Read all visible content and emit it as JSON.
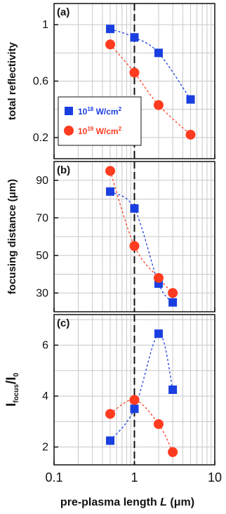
{
  "colors": {
    "series_a": "#1a3fe0",
    "series_b": "#ff3b1f",
    "grid": "#c8c8c8",
    "axis": "#111111"
  },
  "chart_data": [
    {
      "type": "scatter",
      "panel_label": "(a)",
      "ylabel": "total reflectivity",
      "xscale": "log",
      "xlim": [
        0.1,
        10
      ],
      "ylim": [
        0.05,
        1.15
      ],
      "yticks": [
        0.2,
        0.6,
        1
      ],
      "ytick_labels": [
        "0.2",
        "0.6",
        "1"
      ],
      "grid": true,
      "vline_x": 1,
      "legend_position": "lower-left",
      "series": [
        {
          "legend_base": "10",
          "legend_exp": "18",
          "legend_unit": " W/cm",
          "legend_unit_exp": "2",
          "marker": "square",
          "x": [
            0.5,
            1.0,
            2.0,
            5.0
          ],
          "y": [
            0.97,
            0.91,
            0.8,
            0.47
          ]
        },
        {
          "legend_base": "10",
          "legend_exp": "19",
          "legend_unit": " W/cm",
          "legend_unit_exp": "2",
          "marker": "circle",
          "x": [
            0.5,
            1.0,
            2.0,
            5.0
          ],
          "y": [
            0.86,
            0.66,
            0.43,
            0.22
          ]
        }
      ]
    },
    {
      "type": "scatter",
      "panel_label": "(b)",
      "ylabel": "focusing distance (μm)",
      "xscale": "log",
      "xlim": [
        0.1,
        10
      ],
      "ylim": [
        20,
        100
      ],
      "yticks": [
        30,
        50,
        70,
        90
      ],
      "ytick_labels": [
        "30",
        "50",
        "70",
        "90"
      ],
      "grid": true,
      "vline_x": 1,
      "series": [
        {
          "marker": "square",
          "x": [
            0.5,
            1.0,
            2.0,
            3.0
          ],
          "y": [
            84,
            75,
            35,
            25
          ]
        },
        {
          "marker": "circle",
          "x": [
            0.5,
            1.0,
            2.0,
            3.0
          ],
          "y": [
            95,
            55,
            38,
            30
          ]
        }
      ]
    },
    {
      "type": "scatter",
      "panel_label": "(c)",
      "ylabel_main": "I",
      "ylabel_sub1": "focus",
      "ylabel_mid": "/I",
      "ylabel_sub2": "0",
      "xscale": "log",
      "xlim": [
        0.1,
        10
      ],
      "ylim": [
        1.3,
        7.2
      ],
      "yticks": [
        2,
        4,
        6
      ],
      "ytick_labels": [
        "2",
        "4",
        "6"
      ],
      "xticks": [
        0.1,
        1,
        10
      ],
      "xtick_labels": [
        "0.1",
        "1",
        "10"
      ],
      "xlabel_pre": "pre-plasma length ",
      "xlabel_var": "L",
      "xlabel_post": " (μm)",
      "grid": true,
      "vline_x": 1,
      "series": [
        {
          "marker": "square",
          "x": [
            0.5,
            1.0,
            2.0,
            3.0
          ],
          "y": [
            2.25,
            3.5,
            6.45,
            4.25
          ]
        },
        {
          "marker": "circle",
          "x": [
            0.5,
            1.0,
            2.0,
            3.0
          ],
          "y": [
            3.3,
            3.85,
            2.9,
            1.8
          ]
        }
      ]
    }
  ]
}
